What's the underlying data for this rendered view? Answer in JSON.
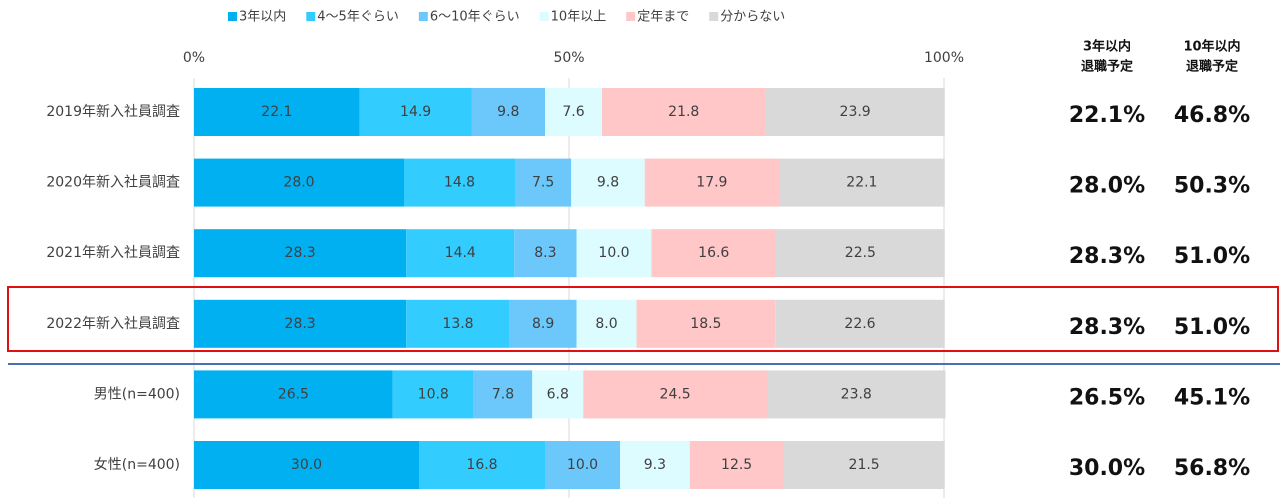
{
  "chart_data": {
    "type": "stacked-barh",
    "categories": [
      "2019年新入社員調査",
      "2020年新入社員調査",
      "2021年新入社員調査",
      "2022年新入社員調査",
      "男性(n=400)",
      "女性(n=400)"
    ],
    "series": [
      {
        "name": "3年以内",
        "color": "#00b0f0",
        "values": [
          22.1,
          28.0,
          28.3,
          28.3,
          26.5,
          30.0
        ],
        "value_labels": [
          "22.1",
          "28.0",
          "28.3",
          "28.3",
          "26.5",
          "30.0"
        ]
      },
      {
        "name": "4〜5年ぐらい",
        "color": "#33ccff",
        "values": [
          14.9,
          14.8,
          14.4,
          13.8,
          10.8,
          16.8
        ],
        "value_labels": [
          "14.9",
          "14.8",
          "14.4",
          "13.8",
          "10.8",
          "16.8"
        ]
      },
      {
        "name": "6〜10年ぐらい",
        "color": "#6cc8fa",
        "values": [
          9.8,
          7.5,
          8.3,
          8.9,
          7.8,
          10.0
        ],
        "value_labels": [
          "9.8",
          "7.5",
          "8.3",
          "8.9",
          "7.8",
          "10.0"
        ]
      },
      {
        "name": "10年以上",
        "color": "#ddfcff",
        "values": [
          7.6,
          9.8,
          10.0,
          8.0,
          6.8,
          9.3
        ],
        "value_labels": [
          "7.6",
          "9.8",
          "10.0",
          "8.0",
          "6.8",
          "9.3"
        ]
      },
      {
        "name": "定年まで",
        "color": "#ffc7c7",
        "values": [
          21.8,
          17.9,
          16.6,
          18.5,
          24.5,
          12.5
        ],
        "value_labels": [
          "21.8",
          "17.9",
          "16.6",
          "18.5",
          "24.5",
          "12.5"
        ]
      },
      {
        "name": "分からない",
        "color": "#d9d9d9",
        "values": [
          23.9,
          22.1,
          22.5,
          22.6,
          23.8,
          21.5
        ],
        "value_labels": [
          "23.9",
          "22.1",
          "22.5",
          "22.6",
          "23.8",
          "21.5"
        ]
      }
    ],
    "xlim": [
      0,
      100
    ],
    "xticks": [
      {
        "value": 0,
        "label": "0%"
      },
      {
        "value": 50,
        "label": "50%"
      },
      {
        "value": 100,
        "label": "100%"
      }
    ],
    "grid": true,
    "columns": [
      {
        "header": [
          "3年以内",
          "退職予定"
        ],
        "values": [
          "22.1%",
          "28.0%",
          "28.3%",
          "28.3%",
          "26.5%",
          "30.0%"
        ]
      },
      {
        "header": [
          "10年以内",
          "退職予定"
        ],
        "values": [
          "46.8%",
          "50.3%",
          "51.0%",
          "51.0%",
          "45.1%",
          "56.8%"
        ]
      }
    ]
  }
}
